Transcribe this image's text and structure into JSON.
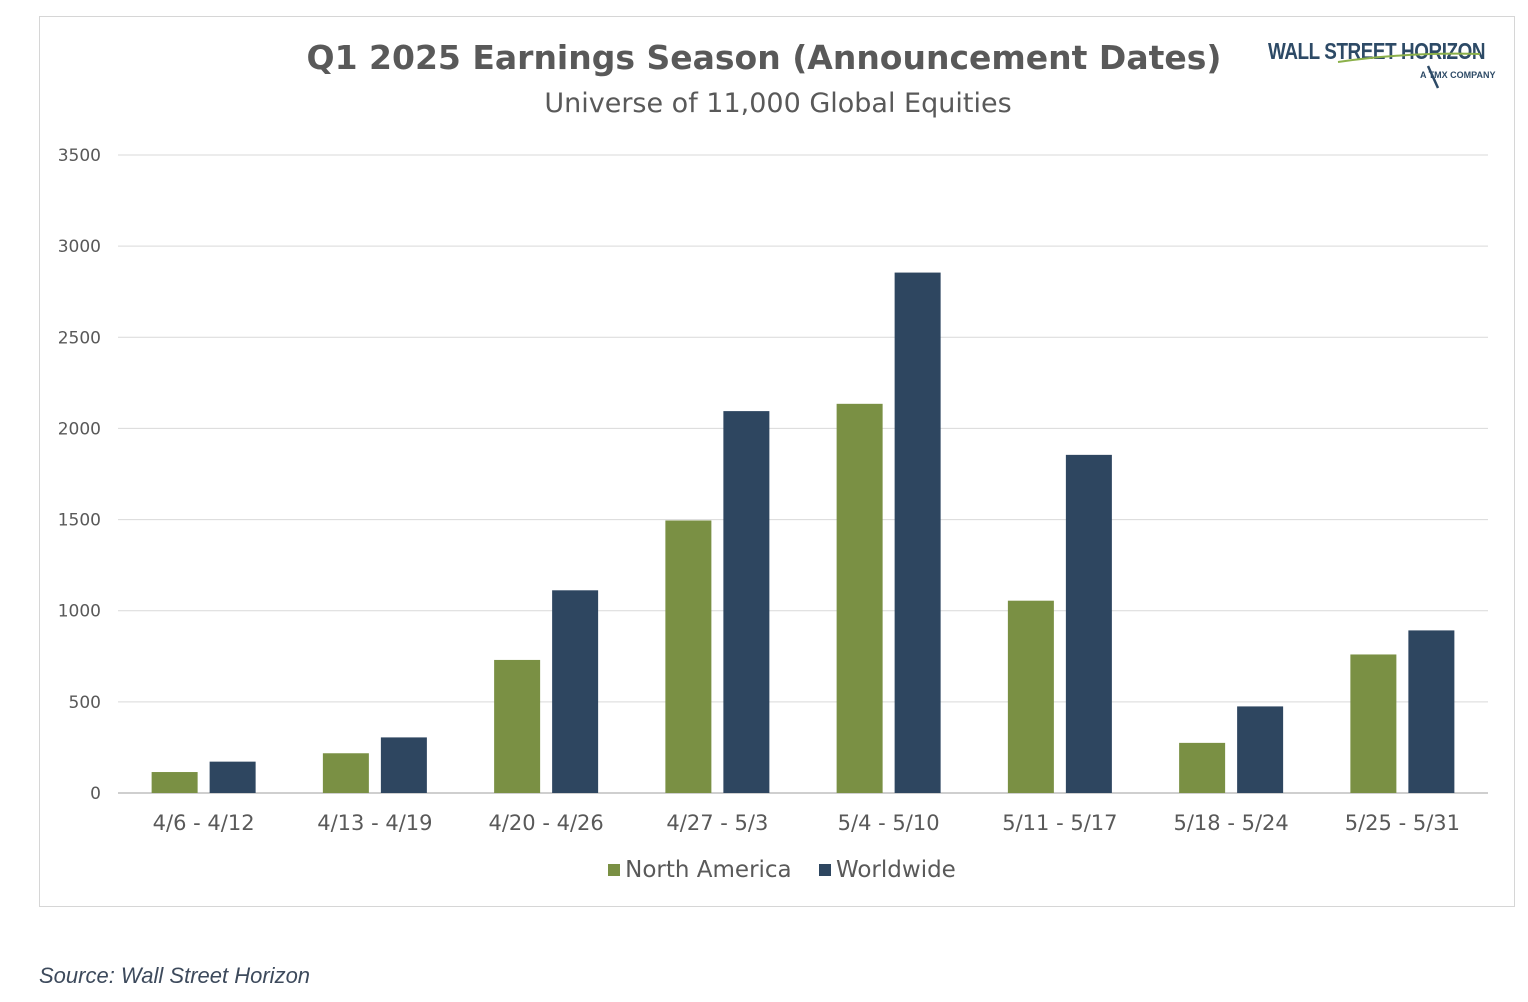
{
  "logo": {
    "name": "WALL STREET HORIZON",
    "tagline": "A TMX COMPANY"
  },
  "source": "Source: Wall Street Horizon",
  "colors": {
    "north_america": "#7a9044",
    "worldwide": "#2e4660",
    "gridline": "#d9d9d9",
    "axis": "#bfbfbf",
    "text": "#595959"
  },
  "chart_data": {
    "type": "bar",
    "title": "Q1 2025 Earnings Season (Announcement Dates)",
    "subtitle": "Universe of 11,000 Global Equities",
    "xlabel": "",
    "ylabel": "",
    "categories": [
      "4/6 - 4/12",
      "4/13 - 4/19",
      "4/20 - 4/26",
      "4/27 - 5/3",
      "5/4 - 5/10",
      "5/11 - 5/17",
      "5/18 - 5/24",
      "5/25 - 5/31"
    ],
    "series": [
      {
        "name": "North America",
        "values": [
          115,
          218,
          730,
          1495,
          2135,
          1055,
          275,
          760
        ]
      },
      {
        "name": "Worldwide",
        "values": [
          172,
          305,
          1112,
          2095,
          2855,
          1855,
          475,
          892
        ]
      }
    ],
    "ylim": [
      0,
      3500
    ],
    "yticks": [
      0,
      500,
      1000,
      1500,
      2000,
      2500,
      3000,
      3500
    ],
    "grid": true,
    "legend": "bottom"
  }
}
